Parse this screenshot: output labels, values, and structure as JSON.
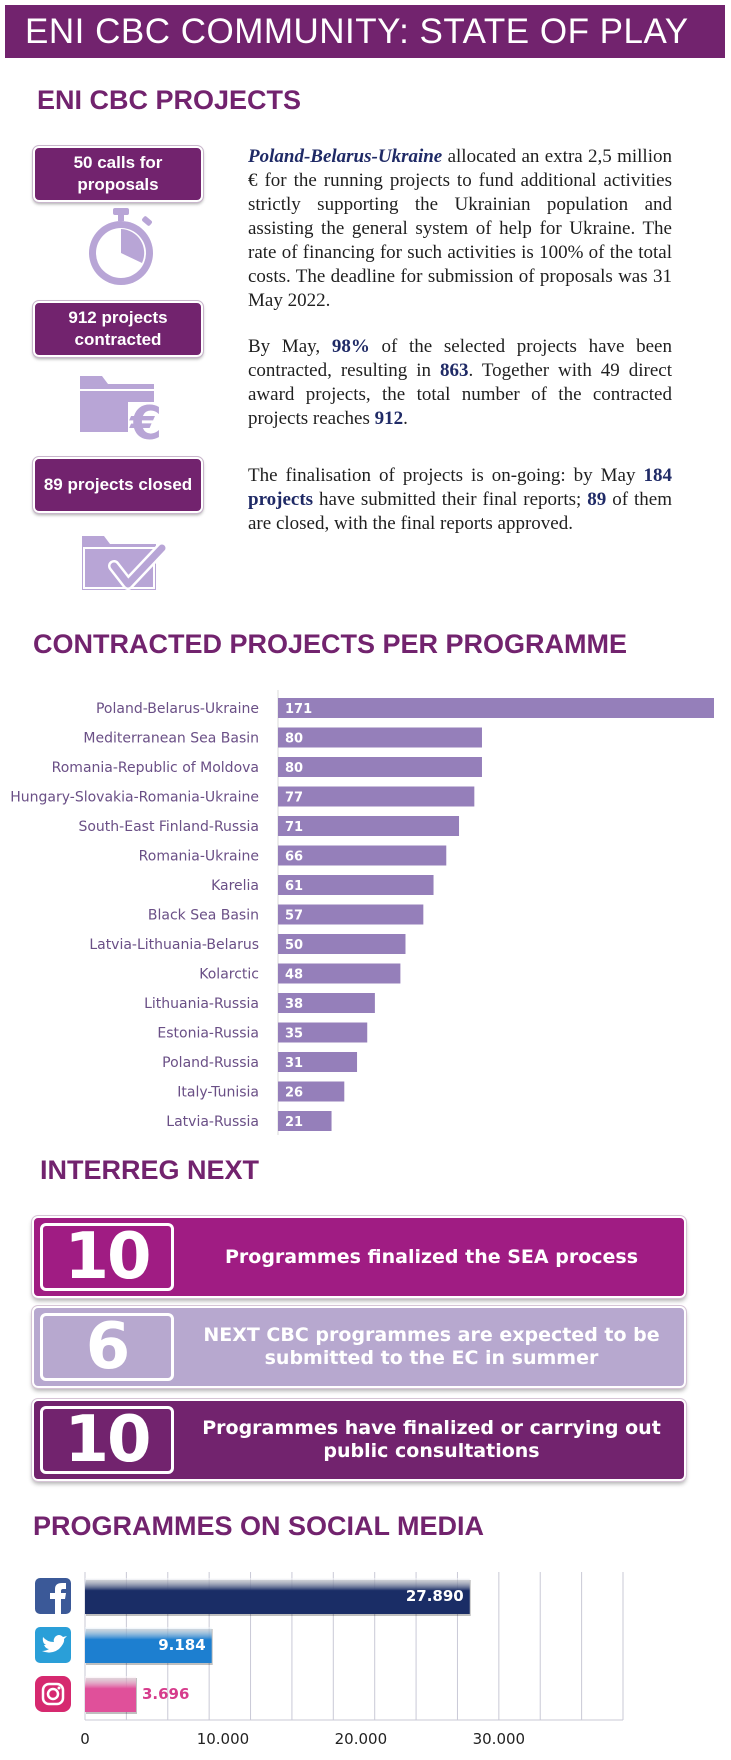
{
  "header": {
    "title": "ENI CBC COMMUNITY: STATE OF PLAY"
  },
  "projects": {
    "title": "ENI CBC PROJECTS",
    "badges": [
      {
        "label": "50 calls for proposals",
        "icon": "stopwatch-icon"
      },
      {
        "label": "912 projects contracted",
        "icon": "folder-euro-icon"
      },
      {
        "label": "89 projects closed",
        "icon": "folder-check-icon"
      }
    ],
    "para1": {
      "lead": "Poland-Belarus-Ukraine",
      "text": " allocated an extra 2,5 million € for the running projects to fund additional activities strictly supporting the Ukrainian population and assisting the general system of help for Ukraine. The rate of financing for such activities is 100% of the total costs. The deadline for submission of proposals was 31 May 2022."
    },
    "para2": {
      "t1": "By May, ",
      "b1": "98%",
      "t2": " of the selected projects have been contracted, resulting in ",
      "b2": "863",
      "t3": ". Together with 49 direct award projects, the total number of the contracted projects reaches ",
      "b3": "912",
      "t4": "."
    },
    "para3": {
      "t1": "The finalisation of projects is on-going: by May ",
      "b1": "184 projects",
      "t2": " have submitted their final reports; ",
      "b2": "89",
      "t3": " of them are closed, with the final reports approved."
    }
  },
  "contracted": {
    "title": "CONTRACTED PROJECTS PER PROGRAMME",
    "bar_color": "#957fba"
  },
  "interreg": {
    "title": "INTERREG NEXT",
    "cards": [
      {
        "number": "10",
        "text": "Programmes finalized the SEA process",
        "color": "#a01c83"
      },
      {
        "number": "6",
        "text": "NEXT CBC programmes are expected to be submitted to the EC in summer",
        "color": "#b7a8cf"
      },
      {
        "number": "10",
        "text": "Programmes have finalized or carrying out public consultations",
        "color": "#72236e"
      }
    ]
  },
  "social": {
    "title": "PROGRAMMES ON SOCIAL MEDIA"
  },
  "chart_data": [
    {
      "type": "bar",
      "orientation": "horizontal",
      "title": "CONTRACTED PROJECTS PER PROGRAMME",
      "categories": [
        "Poland-Belarus-Ukraine",
        "Mediterranean Sea Basin",
        "Romania-Republic of Moldova",
        "Hungary-Slovakia-Romania-Ukraine",
        "South-East Finland-Russia",
        "Romania-Ukraine",
        "Karelia",
        "Black Sea Basin",
        "Latvia-Lithuania-Belarus",
        "Kolarctic",
        "Lithuania-Russia",
        "Estonia-Russia",
        "Poland-Russia",
        "Italy-Tunisia",
        "Latvia-Russia"
      ],
      "values": [
        171,
        80,
        80,
        77,
        71,
        66,
        61,
        57,
        50,
        48,
        38,
        35,
        31,
        26,
        21
      ],
      "value_labels": [
        "171",
        "80",
        "80",
        "77",
        "71",
        "66",
        "61",
        "57",
        "50",
        "48",
        "38",
        "35",
        "31",
        "26",
        "21"
      ],
      "xlim": [
        0,
        171
      ],
      "grid": false,
      "color": "#957fba"
    },
    {
      "type": "bar",
      "orientation": "horizontal",
      "title": "PROGRAMMES ON SOCIAL MEDIA",
      "categories": [
        "facebook",
        "twitter",
        "instagram"
      ],
      "icons": [
        "facebook-icon",
        "twitter-icon",
        "instagram-icon"
      ],
      "values": [
        27890,
        9184,
        3696
      ],
      "value_labels": [
        "27.890",
        "9.184",
        "3.696"
      ],
      "colors": [
        "#1a2d66",
        "#1d7fd0",
        "#e0509a"
      ],
      "value_label_colors": [
        "#ffffff",
        "#ffffff",
        "#d63c8c"
      ],
      "xlim": [
        0,
        39000
      ],
      "x_ticks": [
        0,
        10000,
        20000,
        30000
      ],
      "x_tick_labels": [
        "0",
        "10.000",
        "20.000",
        "30.000"
      ],
      "grid": true
    }
  ]
}
